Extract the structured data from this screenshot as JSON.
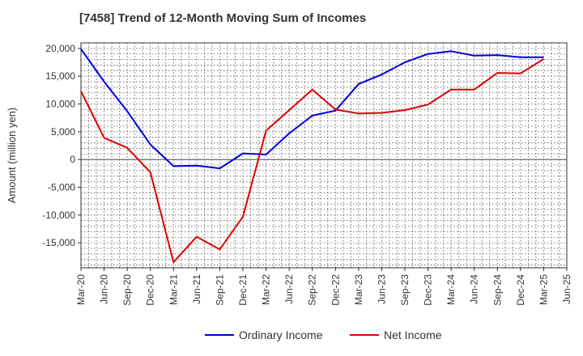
{
  "chart_data": {
    "type": "line",
    "title": "[7458]  Trend of 12-Month Moving Sum of Incomes",
    "xlabel": "",
    "ylabel": "Amount (million yen)",
    "ylim": [
      -19500,
      21000
    ],
    "yticks": [
      20000,
      15000,
      10000,
      5000,
      0,
      -5000,
      -10000,
      -15000
    ],
    "ytick_labels": [
      "20,000",
      "15,000",
      "10,000",
      "5,000",
      "0",
      "-5,000",
      "-10,000",
      "-15,000"
    ],
    "categories": [
      "Mar-20",
      "Jun-20",
      "Sep-20",
      "Dec-20",
      "Mar-21",
      "Jun-21",
      "Sep-21",
      "Dec-21",
      "Mar-22",
      "Jun-22",
      "Sep-22",
      "Dec-22",
      "Mar-23",
      "Jun-23",
      "Sep-23",
      "Dec-23",
      "Mar-24",
      "Jun-24",
      "Sep-24",
      "Dec-24",
      "Mar-25",
      "Jun-25"
    ],
    "grid": true,
    "legend_position": "bottom",
    "series": [
      {
        "name": "Ordinary Income",
        "color": "#0000dd",
        "values": [
          19900,
          14000,
          8700,
          2700,
          -1200,
          -1100,
          -1600,
          1100,
          900,
          4700,
          7900,
          8800,
          13600,
          15300,
          17500,
          19000,
          19500,
          18700,
          18800,
          18400,
          18400,
          null
        ]
      },
      {
        "name": "Net Income",
        "color": "#dd0000",
        "values": [
          12300,
          3900,
          2100,
          -2300,
          -18500,
          -13900,
          -16200,
          -10300,
          5200,
          8900,
          12600,
          9000,
          8300,
          8400,
          8900,
          9900,
          12600,
          12600,
          15600,
          15500,
          18100,
          null
        ]
      }
    ]
  }
}
